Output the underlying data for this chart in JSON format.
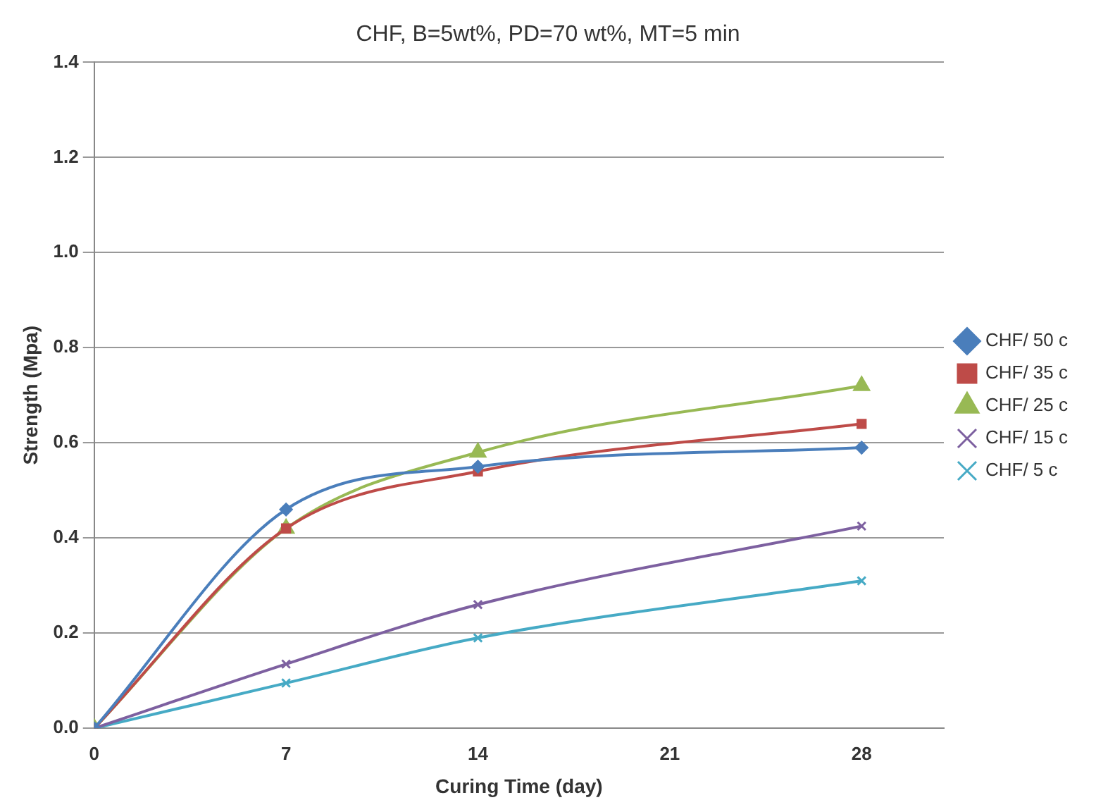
{
  "chart_data": {
    "type": "line",
    "title": "CHF, B=5wt%, PD=70 wt%, MT=5 min",
    "xlabel": "Curing Time (day)",
    "ylabel": "Strength (Mpa)",
    "x": [
      0,
      7,
      14,
      28
    ],
    "series": [
      {
        "name": "CHF/ 50 c",
        "color": "#4a7ebb",
        "marker": "diamond",
        "values": [
          0,
          0.46,
          0.55,
          0.59
        ]
      },
      {
        "name": "CHF/ 35 c",
        "color": "#be4b48",
        "marker": "square",
        "values": [
          0,
          0.42,
          0.54,
          0.64
        ]
      },
      {
        "name": "CHF/ 25 c",
        "color": "#98b954",
        "marker": "triangle",
        "values": [
          0,
          0.42,
          0.58,
          0.72
        ]
      },
      {
        "name": "CHF/ 15 c",
        "color": "#7d60a0",
        "marker": "cross",
        "values": [
          0,
          0.135,
          0.26,
          0.425
        ]
      },
      {
        "name": "CHF/ 5 c",
        "color": "#46aac5",
        "marker": "cross",
        "values": [
          0,
          0.095,
          0.19,
          0.31
        ]
      }
    ],
    "xlim": [
      0,
      31
    ],
    "xticks": [
      0,
      7,
      14,
      21,
      28
    ],
    "ylim": [
      0,
      1.4
    ],
    "yticks": [
      {
        "value": 0,
        "label": "0.0"
      },
      {
        "value": 0.2,
        "label": "0.2"
      },
      {
        "value": 0.4,
        "label": "0.4"
      },
      {
        "value": 0.6,
        "label": "0.6"
      },
      {
        "value": 0.8,
        "label": "0.8"
      },
      {
        "value": 1,
        "label": "1.0"
      },
      {
        "value": 1.2,
        "label": "1.2"
      },
      {
        "value": 1.4,
        "label": "1.4"
      }
    ],
    "grid": "y",
    "legend": "right"
  }
}
